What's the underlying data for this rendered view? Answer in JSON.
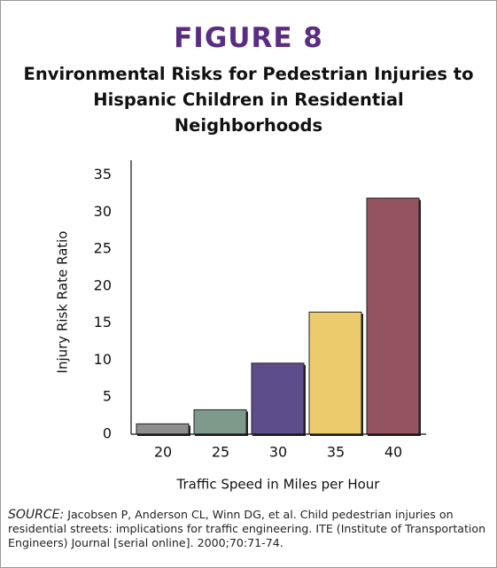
{
  "chart_data": {
    "type": "bar",
    "figure_label": "FIGURE 8",
    "title": "Environmental Risks for Pedestrian Injuries to Hispanic Children in Residential Neighborhoods",
    "x_label": "Traffic Speed in Miles per Hour",
    "y_label": "Injury Risk Rate Ratio",
    "categories": [
      "20",
      "25",
      "30",
      "35",
      "40"
    ],
    "values": [
      1.4,
      3.3,
      9.6,
      16.5,
      31.9
    ],
    "colors": [
      "#8e8e8e",
      "#7e9a8a",
      "#5d4d8a",
      "#eccb6c",
      "#94545f"
    ],
    "ylim": [
      0,
      37
    ],
    "yticks": [
      0,
      5,
      10,
      15,
      20,
      25,
      30,
      35
    ],
    "grid": false,
    "source_label": "SOURCE:",
    "source": "Jacobsen P, Anderson CL, Winn DG, et al. Child pedestrian injuries on residential streets: implications for traffic engineering. ITE (Institute of Transportation Engineers) Journal [serial online]. 2000;70:71-74."
  }
}
